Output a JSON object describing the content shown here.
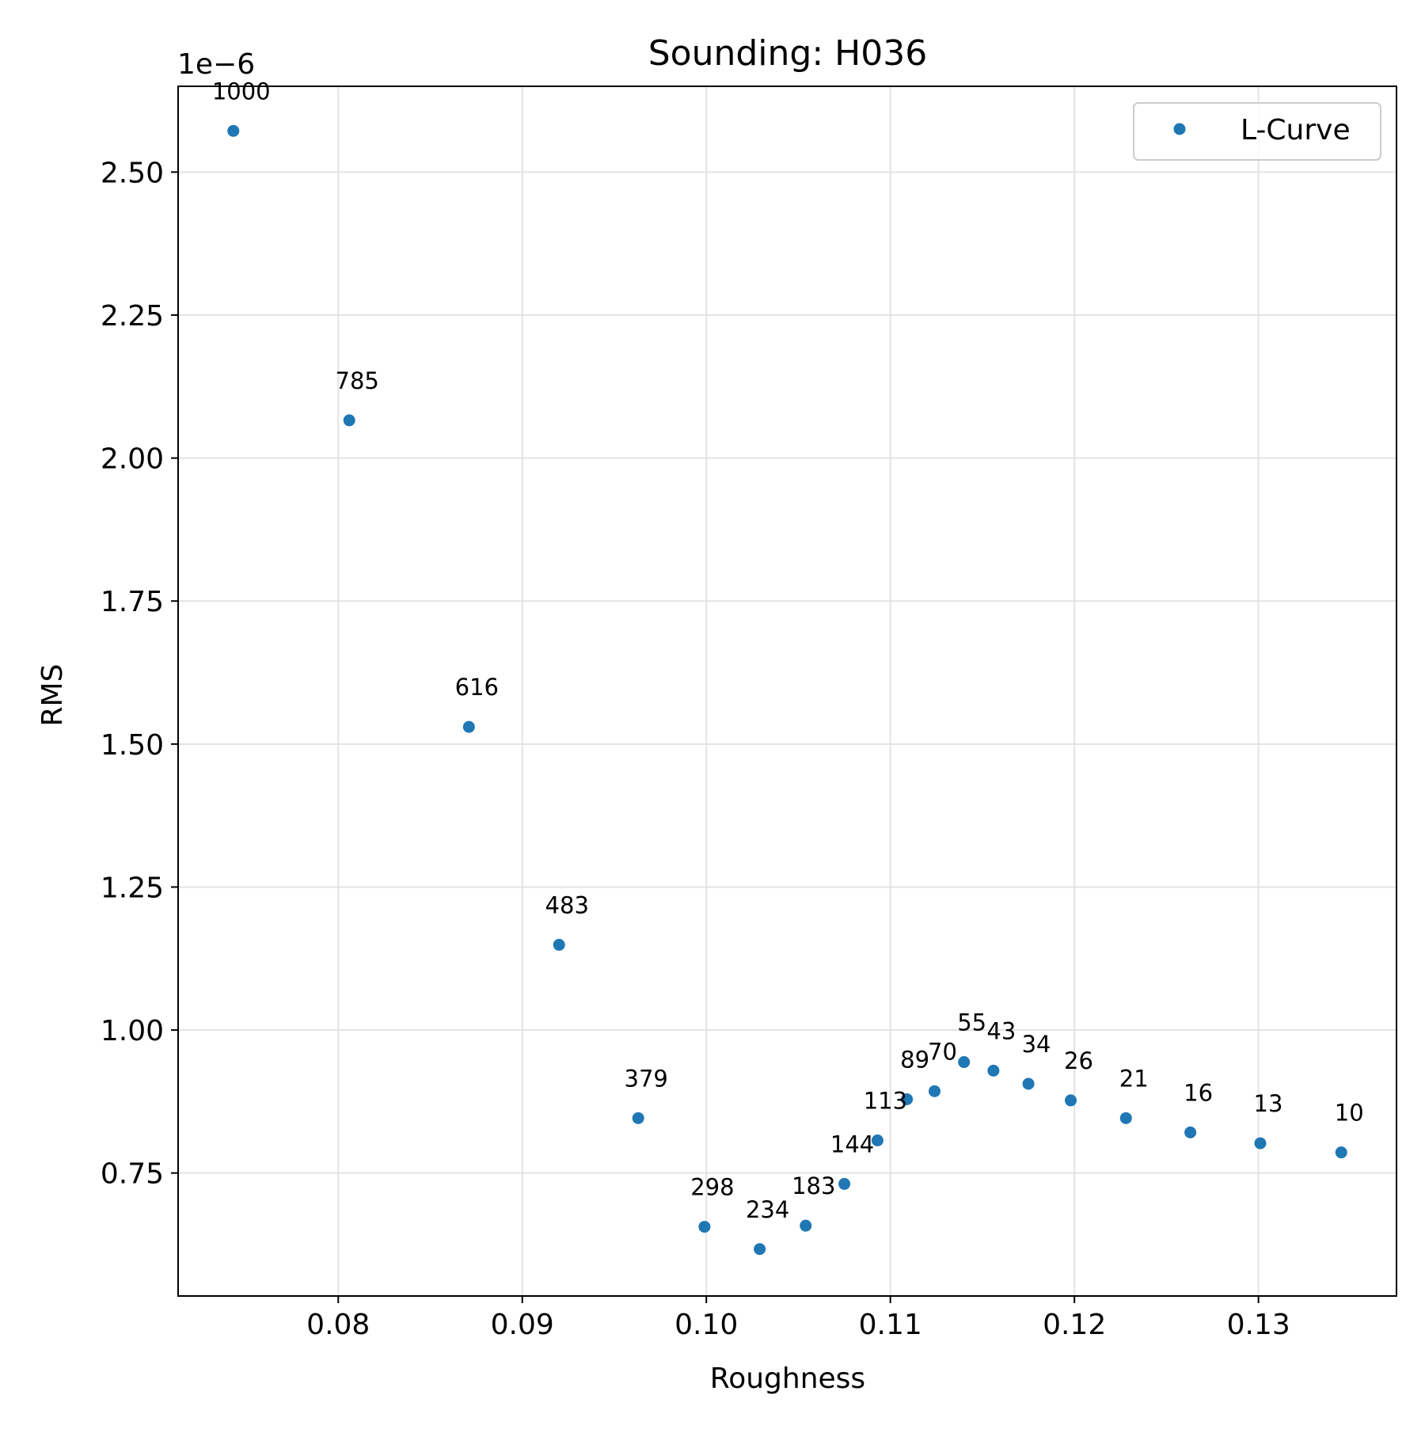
{
  "chart_data": {
    "type": "scatter",
    "title": "Sounding: H036",
    "xlabel": "Roughness",
    "ylabel": "RMS",
    "y_offset_label": "1e−6",
    "xlim": [
      0.0713,
      0.1375
    ],
    "ylim": [
      0.535,
      2.65
    ],
    "xticks": [
      0.08,
      0.09,
      0.1,
      0.11,
      0.12,
      0.13
    ],
    "xtick_labels": [
      "0.08",
      "0.09",
      "0.10",
      "0.11",
      "0.12",
      "0.13"
    ],
    "yticks": [
      0.75,
      1.0,
      1.25,
      1.5,
      1.75,
      2.0,
      2.25,
      2.5
    ],
    "ytick_labels": [
      "0.75",
      "1.00",
      "1.25",
      "1.50",
      "1.75",
      "2.00",
      "2.25",
      "2.50"
    ],
    "grid": true,
    "legend_position": "top-right",
    "series": [
      {
        "name": "L-Curve",
        "color": "#1f77b4",
        "points": [
          {
            "x": 0.0743,
            "y": 2.572,
            "label": "1000"
          },
          {
            "x": 0.0806,
            "y": 2.066,
            "label": "785"
          },
          {
            "x": 0.0871,
            "y": 1.53,
            "label": "616"
          },
          {
            "x": 0.092,
            "y": 1.149,
            "label": "483"
          },
          {
            "x": 0.0963,
            "y": 0.846,
            "label": "379"
          },
          {
            "x": 0.0999,
            "y": 0.656,
            "label": "298"
          },
          {
            "x": 0.1029,
            "y": 0.617,
            "label": "234"
          },
          {
            "x": 0.1054,
            "y": 0.658,
            "label": "183"
          },
          {
            "x": 0.1075,
            "y": 0.731,
            "label": "144"
          },
          {
            "x": 0.1093,
            "y": 0.807,
            "label": "113"
          },
          {
            "x": 0.1109,
            "y": 0.879,
            "label": "89"
          },
          {
            "x": 0.1124,
            "y": 0.893,
            "label": "70"
          },
          {
            "x": 0.114,
            "y": 0.944,
            "label": "55"
          },
          {
            "x": 0.1156,
            "y": 0.929,
            "label": "43"
          },
          {
            "x": 0.1175,
            "y": 0.906,
            "label": "34"
          },
          {
            "x": 0.1198,
            "y": 0.877,
            "label": "26"
          },
          {
            "x": 0.1228,
            "y": 0.846,
            "label": "21"
          },
          {
            "x": 0.1263,
            "y": 0.821,
            "label": "16"
          },
          {
            "x": 0.1301,
            "y": 0.802,
            "label": "13"
          },
          {
            "x": 0.1345,
            "y": 0.786,
            "label": "10"
          }
        ]
      }
    ]
  }
}
